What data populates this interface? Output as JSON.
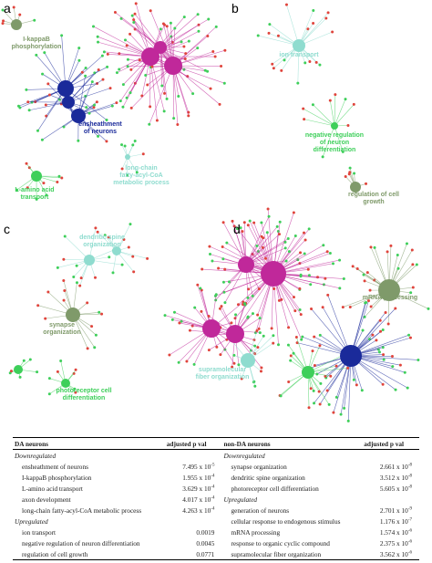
{
  "panels": [
    {
      "letter": "a",
      "terms": [
        [
          "I-kappaB",
          "phosphorylation"
        ],
        [
          "ensheathment",
          "of neurons"
        ],
        [
          "long-chain",
          "fatty-acyl-CoA",
          "metabolic process"
        ],
        [
          "L-amino acid",
          "transport"
        ]
      ]
    },
    {
      "letter": "b",
      "terms": [
        [
          "ion transport"
        ],
        [
          "negative regulation",
          "of neuron",
          "differentiation"
        ],
        [
          "regulation of cell",
          "growth"
        ]
      ]
    },
    {
      "letter": "c",
      "terms": [
        [
          "dendritic spine",
          "organization"
        ],
        [
          "synapse",
          "organization"
        ],
        [
          "photoreceptor cell",
          "differentiation"
        ]
      ]
    },
    {
      "letter": "d",
      "terms": [
        [
          "mRNA processing"
        ],
        [
          "supramolecular",
          "fiber organization"
        ]
      ]
    }
  ],
  "table": {
    "header": [
      "DA neurons",
      "adjusted p val",
      "non-DA neurons",
      "adjusted p val"
    ],
    "rows": [
      {
        "left": {
          "group": "Downregulated"
        },
        "right": {
          "group": "Downregulated"
        }
      },
      {
        "left": {
          "term": "ensheathment of neurons",
          "p": {
            "base": "7.495 x 10",
            "exp": "-5"
          }
        },
        "right": {
          "term": "synapse organization",
          "p": {
            "base": "2.661 x 10",
            "exp": "-8"
          }
        }
      },
      {
        "left": {
          "term": "I-kappaB phosphorylation",
          "p": {
            "base": "1.955 x 10",
            "exp": "-4"
          }
        },
        "right": {
          "term": "dendritic spine organization",
          "p": {
            "base": "3.512 x 10",
            "exp": "-8"
          }
        }
      },
      {
        "left": {
          "term": "L-amino acid transport",
          "p": {
            "base": "3.629 x 10",
            "exp": "-4"
          }
        },
        "right": {
          "term": "photoreceptor cell differentiation",
          "p": {
            "base": "5.605 x 10",
            "exp": "-8"
          }
        }
      },
      {
        "left": {
          "term": "axon development",
          "p": {
            "base": "4.017 x 10",
            "exp": "-4"
          }
        },
        "right": {
          "group": "Upregulated"
        }
      },
      {
        "left": {
          "term": "long-chain fatty-acyl-CoA metabolic process",
          "p": {
            "base": "4.263 x 10",
            "exp": "-4"
          }
        },
        "right": {
          "term": "generation of neurons",
          "p": {
            "base": "2.701 x 10",
            "exp": "-9"
          }
        }
      },
      {
        "left": {
          "group": "Upregulated"
        },
        "right": {
          "term": "cellular response to endogenous stimulus",
          "p": {
            "base": "1.176 x 10",
            "exp": "-7"
          }
        }
      },
      {
        "left": {
          "term": "ion transport",
          "p": "0.0019"
        },
        "right": {
          "term": "mRNA processing",
          "p": {
            "base": "1.574 x 10",
            "exp": "-6"
          }
        }
      },
      {
        "left": {
          "term": "negative regulation of neuron differentiation",
          "p": "0.0045"
        },
        "right": {
          "term": "response to organic cyclic compound",
          "p": {
            "base": "2.375 x 10",
            "exp": "-6"
          }
        }
      },
      {
        "left": {
          "term": "regulation of cell growth",
          "p": "0.0771"
        },
        "right": {
          "term": "supramolecular fiber organization",
          "p": {
            "base": "3.562 x 10",
            "exp": "-6"
          }
        }
      }
    ]
  }
}
